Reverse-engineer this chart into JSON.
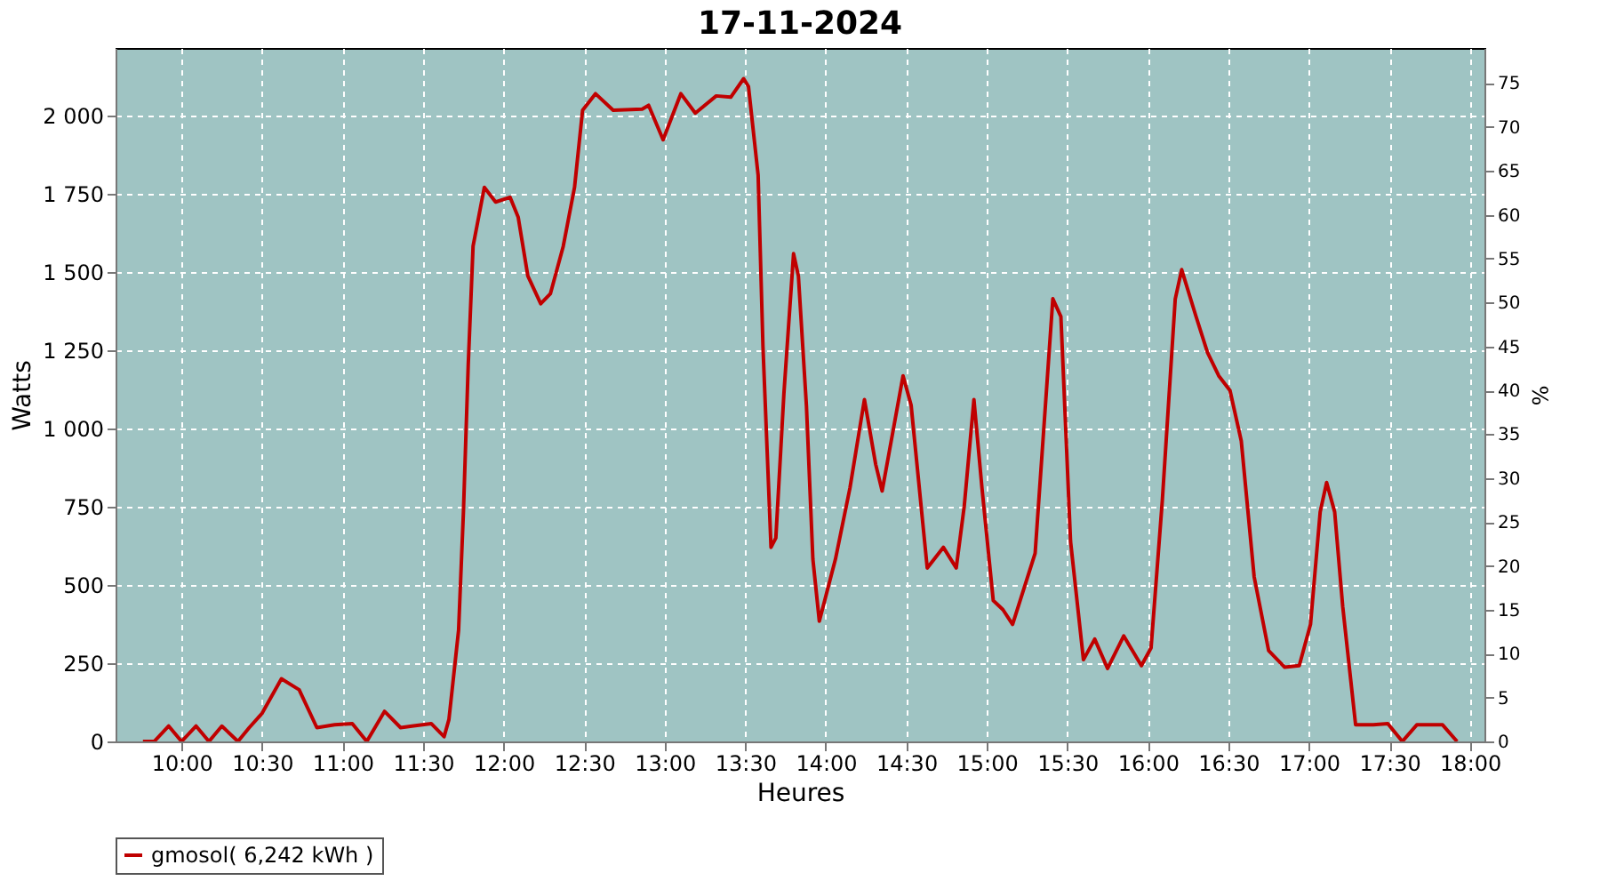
{
  "chart_data": {
    "type": "line",
    "title": "17-11-2024",
    "xlabel": "Heures",
    "ylabel": "Watts",
    "y2label": "%",
    "x": [
      9.76,
      9.83,
      9.92,
      10.0,
      10.09,
      10.17,
      10.25,
      10.35,
      10.42,
      10.5,
      10.62,
      10.73,
      10.84,
      10.95,
      11.06,
      11.15,
      11.26,
      11.36,
      11.43,
      11.55,
      11.63,
      11.66,
      11.72,
      11.75,
      11.78,
      11.81,
      11.88,
      11.95,
      12.04,
      12.09,
      12.15,
      12.23,
      12.29,
      12.37,
      12.44,
      12.49,
      12.57,
      12.68,
      12.86,
      12.9,
      12.99,
      13.1,
      13.19,
      13.32,
      13.41,
      13.49,
      13.52,
      13.58,
      13.61,
      13.66,
      13.69,
      13.74,
      13.8,
      13.83,
      13.88,
      13.92,
      13.96,
      14.06,
      14.15,
      14.24,
      14.31,
      14.35,
      14.48,
      14.53,
      14.63,
      14.73,
      14.81,
      14.86,
      14.92,
      14.97,
      15.04,
      15.1,
      15.16,
      15.3,
      15.41,
      15.46,
      15.52,
      15.6,
      15.67,
      15.75,
      15.85,
      15.96,
      16.02,
      16.09,
      16.17,
      16.21,
      16.3,
      16.37,
      16.44,
      16.51,
      16.58,
      16.66,
      16.75,
      16.85,
      16.94,
      17.01,
      17.07,
      17.11,
      17.16,
      17.21,
      17.29,
      17.4,
      17.49,
      17.58,
      17.67,
      17.83,
      17.92
    ],
    "series": [
      {
        "name": "gmosol( 6,242 kWh )",
        "color": "#c00000",
        "values": [
          0,
          0,
          49,
          0,
          49,
          0,
          49,
          0,
          44,
          90,
          200,
          165,
          44,
          53,
          57,
          0,
          96,
          44,
          49,
          57,
          15,
          70,
          355,
          732,
          1204,
          1582,
          1770,
          1723,
          1738,
          1675,
          1487,
          1398,
          1430,
          1582,
          1770,
          2016,
          2069,
          2016,
          2020,
          2032,
          1922,
          2069,
          2007,
          2062,
          2058,
          2117,
          2092,
          1809,
          1262,
          620,
          650,
          1111,
          1558,
          1487,
          1072,
          582,
          384,
          582,
          809,
          1092,
          885,
          800,
          1168,
          1074,
          554,
          620,
          554,
          752,
          1092,
          809,
          450,
          421,
          374,
          601,
          1414,
          1357,
          639,
          261,
          327,
          233,
          337,
          242,
          299,
          771,
          1413,
          1507,
          1356,
          1243,
          1168,
          1121,
          960,
          526,
          290,
          237,
          242,
          374,
          733,
          827,
          733,
          431,
          53,
          53,
          57,
          0,
          53,
          53,
          0
        ]
      }
    ],
    "xlim": [
      9.59,
      18.09
    ],
    "xticks": [
      {
        "value": 10,
        "label": "10:00"
      },
      {
        "value": 10.5,
        "label": "10:30"
      },
      {
        "value": 11,
        "label": "11:00"
      },
      {
        "value": 11.5,
        "label": "11:30"
      },
      {
        "value": 12,
        "label": "12:00"
      },
      {
        "value": 12.5,
        "label": "12:30"
      },
      {
        "value": 13,
        "label": "13:00"
      },
      {
        "value": 13.5,
        "label": "13:30"
      },
      {
        "value": 14,
        "label": "14:00"
      },
      {
        "value": 14.5,
        "label": "14:30"
      },
      {
        "value": 15,
        "label": "15:00"
      },
      {
        "value": 15.5,
        "label": "15:30"
      },
      {
        "value": 16,
        "label": "16:00"
      },
      {
        "value": 16.5,
        "label": "16:30"
      },
      {
        "value": 17,
        "label": "17:00"
      },
      {
        "value": 17.5,
        "label": "17:30"
      },
      {
        "value": 18,
        "label": "18:00"
      }
    ],
    "ylim": [
      0,
      2215
    ],
    "yticks": [
      0,
      250,
      500,
      750,
      {
        "value": 1000,
        "label": "1 000"
      },
      {
        "value": 1250,
        "label": "1 250"
      },
      {
        "value": 1500,
        "label": "1 500"
      },
      {
        "value": 1750,
        "label": "1 750"
      },
      {
        "value": 2000,
        "label": "2 000"
      }
    ],
    "y2lim": [
      0,
      79
    ],
    "y2ticks": [
      0,
      5,
      10,
      15,
      20,
      25,
      30,
      35,
      40,
      45,
      50,
      55,
      60,
      65,
      70,
      75
    ],
    "grid": true,
    "legend": "bottom",
    "marker": "none",
    "line_style": "solid"
  }
}
